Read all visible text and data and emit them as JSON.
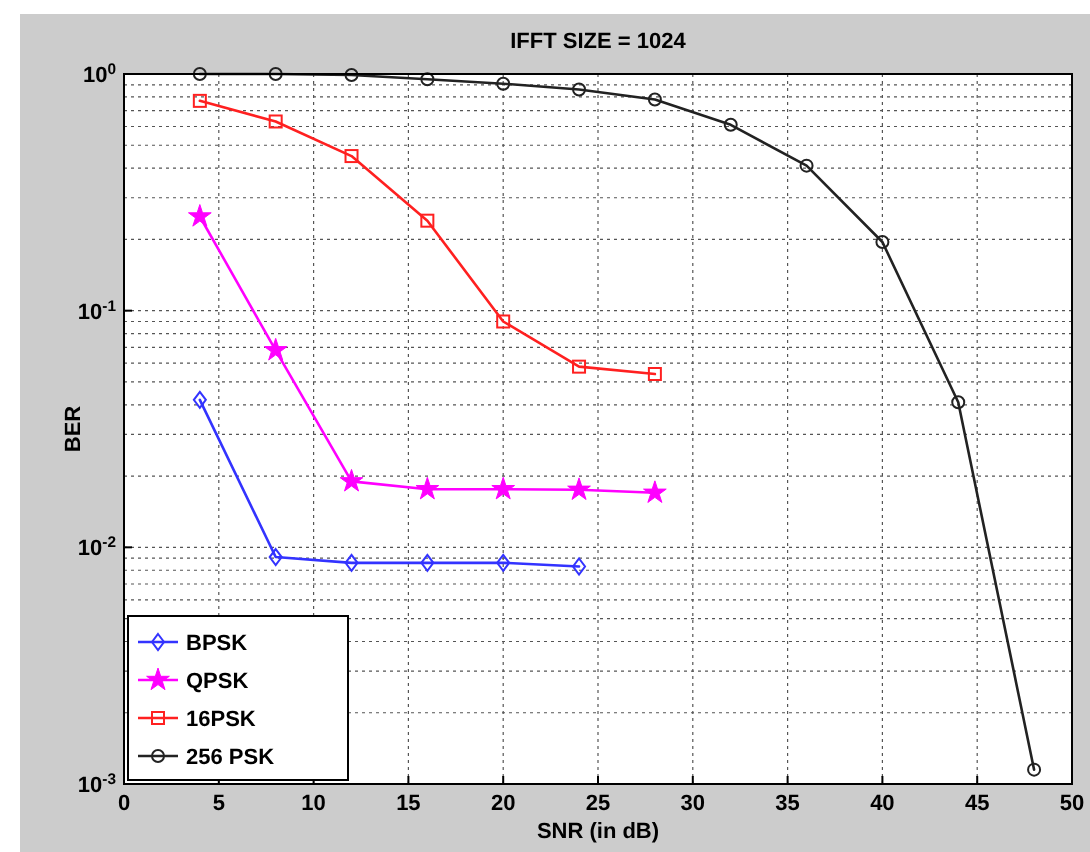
{
  "chart_data": {
    "type": "line",
    "title": "IFFT SIZE = 1024",
    "xlabel": "SNR (in dB)",
    "ylabel": "BER",
    "log": "y",
    "grid": true,
    "legend": "bottom left",
    "line_style": "solid",
    "xlim": [
      0,
      50
    ],
    "xticks": [
      0,
      5,
      10,
      15,
      20,
      25,
      30,
      35,
      40,
      45,
      50
    ],
    "ylim": [
      0.001,
      1
    ],
    "yticks": [
      {
        "value": 0.001,
        "label": "10$^{-3}$"
      },
      {
        "value": 0.01,
        "label": "10$^{-2}$"
      },
      {
        "value": 0.1,
        "label": "10$^{-1}$"
      },
      {
        "value": 1,
        "label": "10$^{0}$"
      }
    ],
    "series": [
      {
        "name": "BPSK",
        "color": "#3333ff",
        "marker": "diamond",
        "x": [
          4,
          8,
          12,
          16,
          20,
          24
        ],
        "values": [
          0.042,
          0.0091,
          0.0086,
          0.0086,
          0.0086,
          0.0083
        ]
      },
      {
        "name": "QPSK",
        "color": "#ff00ff",
        "marker": "star",
        "x": [
          4,
          8,
          12,
          16,
          20,
          24,
          28
        ],
        "values": [
          0.25,
          0.068,
          0.019,
          0.0176,
          0.0176,
          0.0175,
          0.017
        ]
      },
      {
        "name": "16PSK",
        "color": "#ff2020",
        "marker": "square",
        "x": [
          4,
          8,
          12,
          16,
          20,
          24,
          28
        ],
        "values": [
          0.77,
          0.63,
          0.45,
          0.24,
          0.09,
          0.058,
          0.054
        ]
      },
      {
        "name": "256 PSK",
        "color": "#222222",
        "marker": "circle",
        "x": [
          4,
          8,
          12,
          16,
          20,
          24,
          28,
          32,
          36,
          40,
          44,
          48
        ],
        "values": [
          1,
          1,
          0.99,
          0.95,
          0.91,
          0.86,
          0.78,
          0.61,
          0.41,
          0.195,
          0.041,
          0.00115
        ]
      }
    ]
  }
}
